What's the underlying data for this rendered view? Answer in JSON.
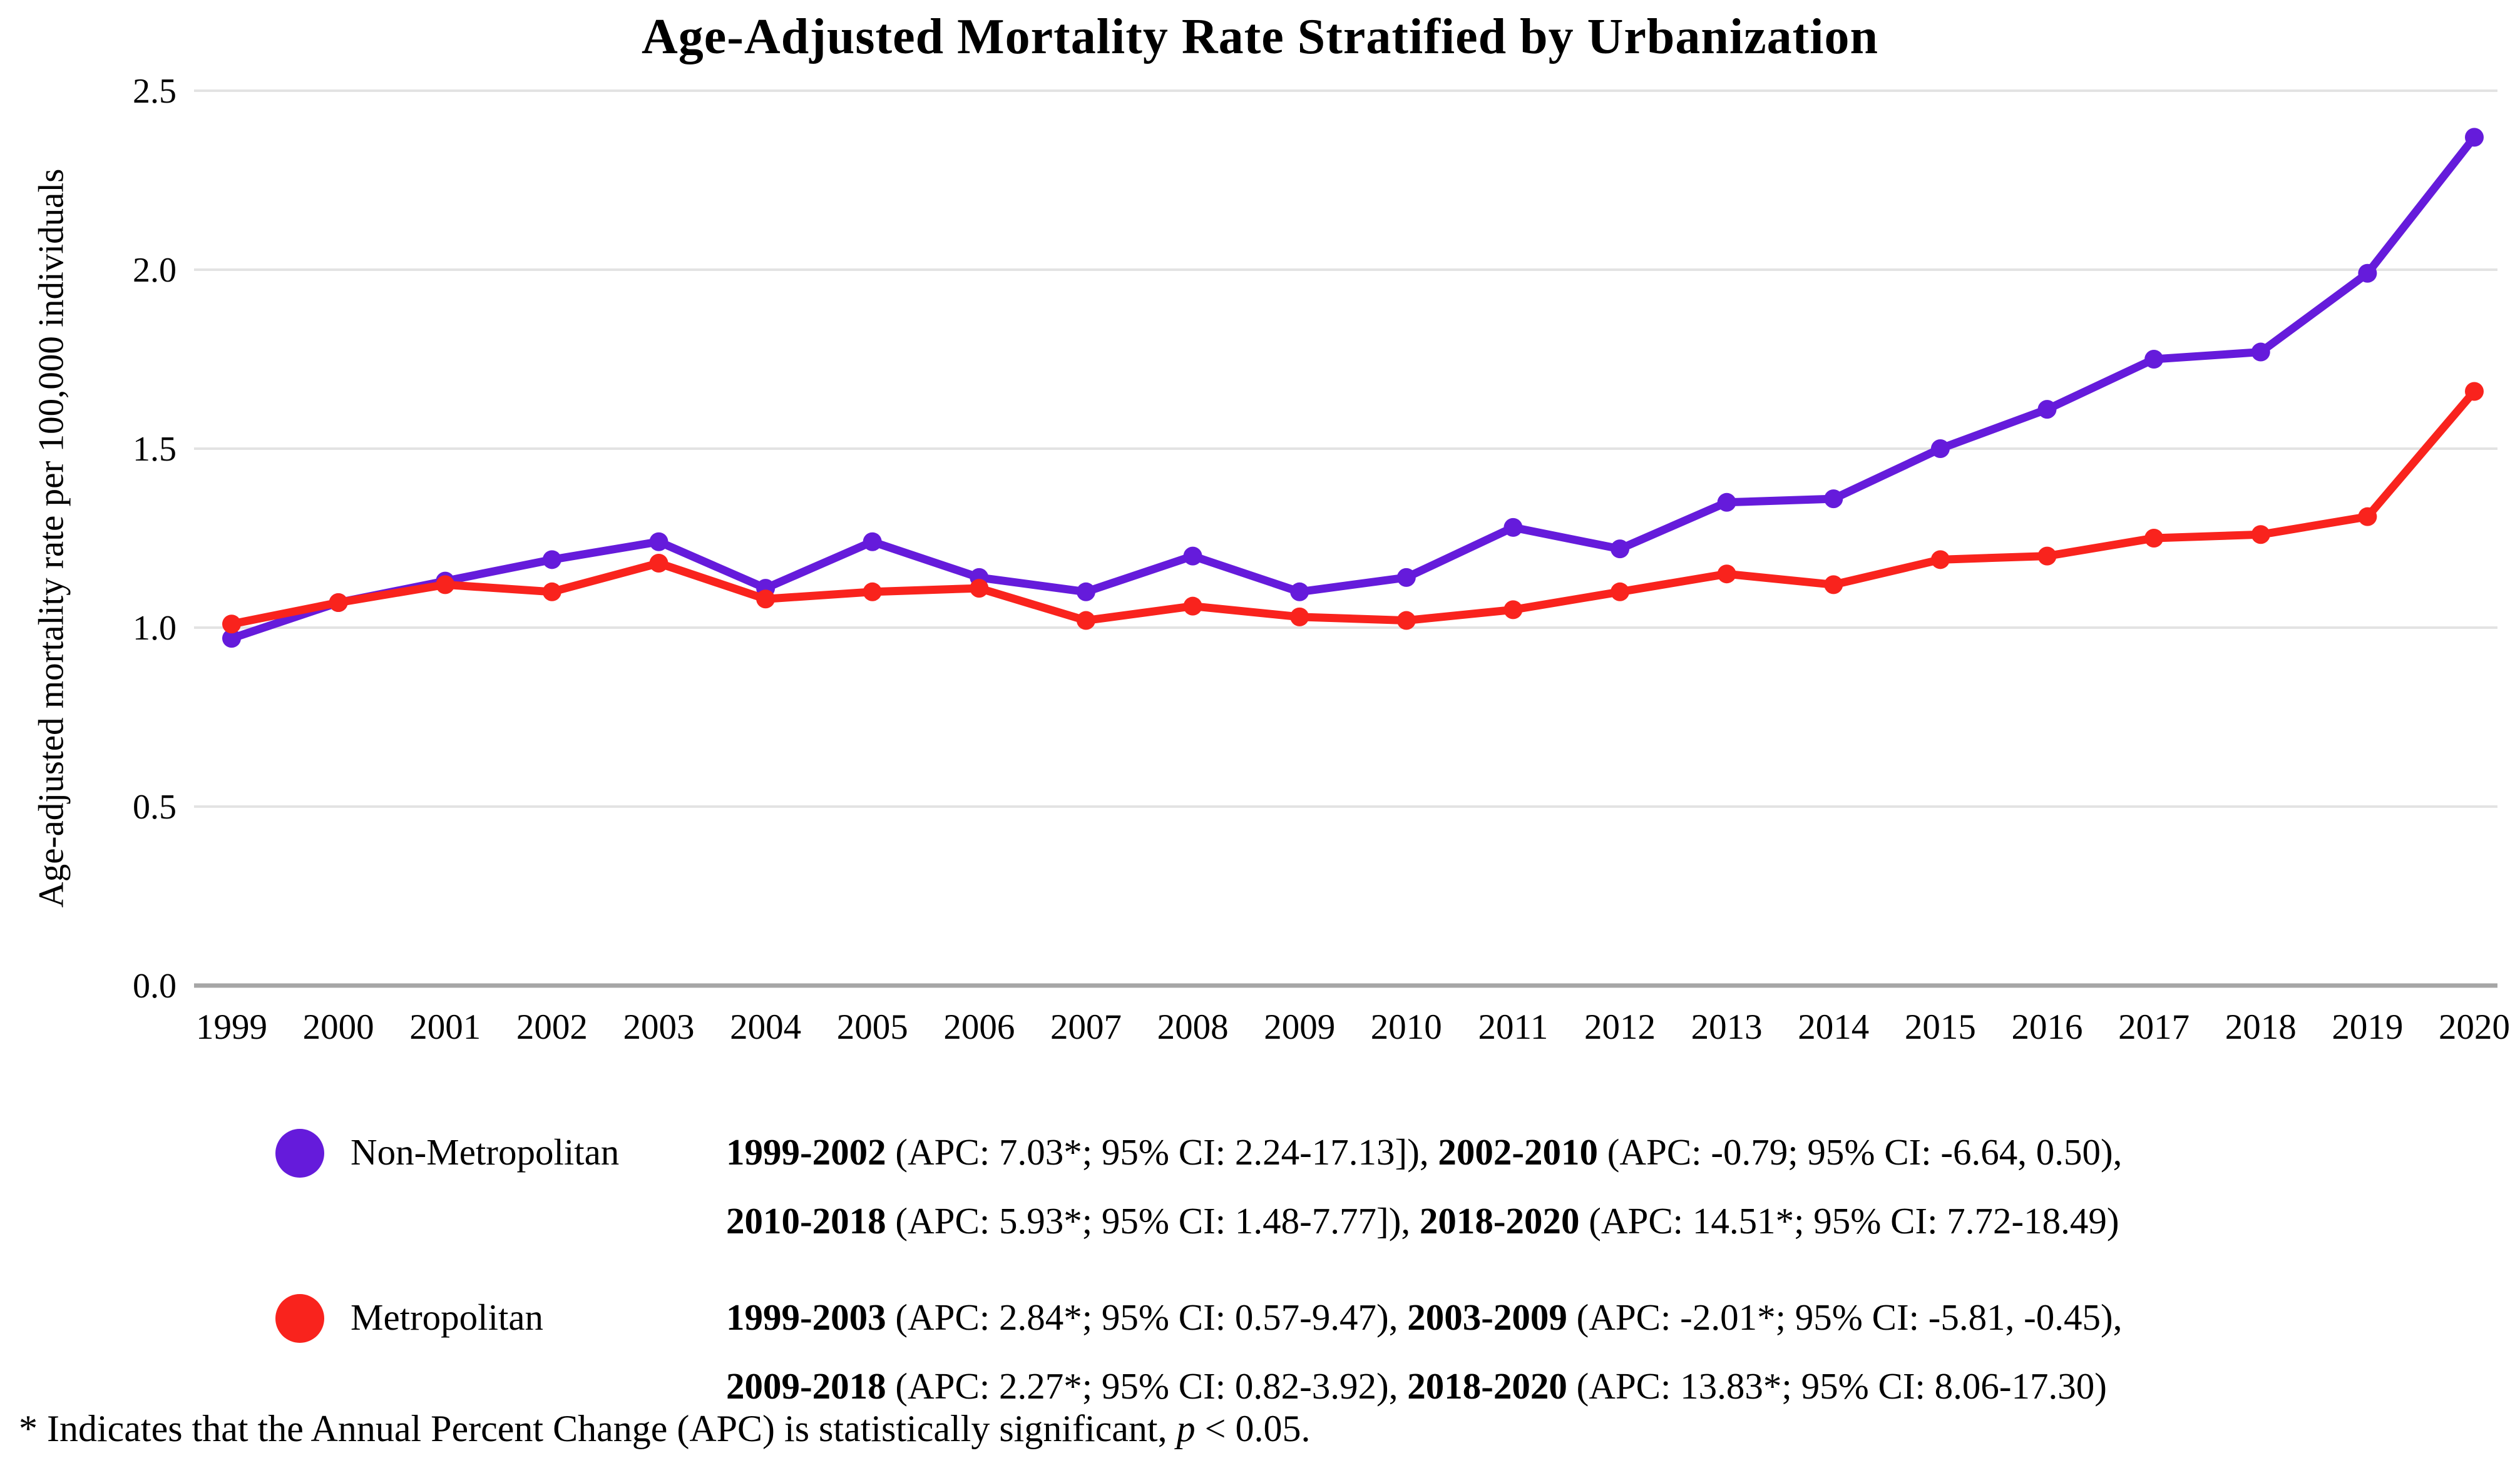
{
  "title": "Age-Adjusted Mortality Rate Stratified by Urbanization",
  "y_axis_label": "Age-adjusted mortality rate per 100,000 individuals",
  "chart_data": {
    "type": "line",
    "title": "Age-Adjusted Mortality Rate Stratified by Urbanization",
    "xlabel": "",
    "ylabel": "Age-adjusted mortality rate per 100,000 individuals",
    "x": [
      1999,
      2000,
      2001,
      2002,
      2003,
      2004,
      2005,
      2006,
      2007,
      2008,
      2009,
      2010,
      2011,
      2012,
      2013,
      2014,
      2015,
      2016,
      2017,
      2018,
      2019,
      2020
    ],
    "x_tick_labels": [
      "1999",
      "2000",
      "2001",
      "2002",
      "2003",
      "2004",
      "2005",
      "2006",
      "2007",
      "2008",
      "2009",
      "2010",
      "2011",
      "2012",
      "2013",
      "2014",
      "2015",
      "2016",
      "2017",
      "2018",
      "2019",
      "2020"
    ],
    "y_ticks": [
      "0.0",
      "0.5",
      "1.0",
      "1.5",
      "2.0",
      "2.5"
    ],
    "ylim": [
      0,
      2.5
    ],
    "grid": true,
    "legend_position": "bottom-left",
    "series": [
      {
        "name": "Non-Metropolitan",
        "color": "#651bdb",
        "values": [
          0.97,
          1.07,
          1.13,
          1.19,
          1.24,
          1.11,
          1.24,
          1.14,
          1.1,
          1.2,
          1.1,
          1.14,
          1.28,
          1.22,
          1.35,
          1.36,
          1.5,
          1.61,
          1.75,
          1.77,
          1.99,
          2.37
        ]
      },
      {
        "name": "Metropolitan",
        "color": "#f9231d",
        "values": [
          1.01,
          1.07,
          1.12,
          1.1,
          1.18,
          1.08,
          1.1,
          1.11,
          1.02,
          1.06,
          1.03,
          1.02,
          1.05,
          1.1,
          1.15,
          1.12,
          1.19,
          1.2,
          1.25,
          1.26,
          1.31,
          1.66
        ]
      }
    ]
  },
  "colors": {
    "non_metropolitan": "#651bdb",
    "metropolitan": "#f9231d",
    "gridline": "#e3e3e3",
    "axis_line": "#a6a6a6"
  },
  "legend": {
    "items": [
      {
        "label": "Non-Metropolitan",
        "color": "#651bdb",
        "lines": [
          [
            {
              "b": "1999-2002"
            },
            {
              "t": " (APC: 7.03*; 95% CI: 2.24-17.13]), "
            },
            {
              "b": "2002-2010"
            },
            {
              "t": " (APC: -0.79; 95% CI: -6.64, 0.50),"
            }
          ],
          [
            {
              "b": "2010-2018"
            },
            {
              "t": " (APC: 5.93*; 95% CI: 1.48-7.77]), "
            },
            {
              "b": "2018-2020"
            },
            {
              "t": " (APC: 14.51*; 95% CI: 7.72-18.49)"
            }
          ]
        ]
      },
      {
        "label": "Metropolitan",
        "color": "#f9231d",
        "lines": [
          [
            {
              "b": "1999-2003"
            },
            {
              "t": " (APC: 2.84*; 95% CI: 0.57-9.47), "
            },
            {
              "b": "2003-2009"
            },
            {
              "t": " (APC: -2.01*; 95% CI: -5.81, -0.45),"
            }
          ],
          [
            {
              "b": "2009-2018"
            },
            {
              "t": " (APC: 2.27*; 95% CI: 0.82-3.92), "
            },
            {
              "b": "2018-2020"
            },
            {
              "t": " (APC: 13.83*; 95% CI: 8.06-17.30)"
            }
          ]
        ]
      }
    ]
  },
  "footnote": {
    "runs": [
      {
        "t": "* Indicates that the Annual Percent Change (APC) is statistically significant, "
      },
      {
        "i": "p"
      },
      {
        "t": " < 0.05."
      }
    ]
  }
}
